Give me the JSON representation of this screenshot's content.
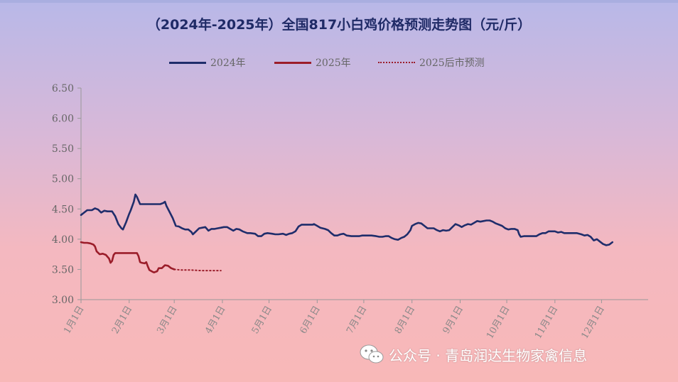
{
  "title": "（2024年-2025年）全国817小白鸡价格预测走势图（元/斤）",
  "watermark": "公众号 · 青岛润达生物家禽信息",
  "chart_data": {
    "type": "line",
    "title": "（2024年-2025年）全国817小白鸡价格预测走势图（元/斤）",
    "xlabel": "",
    "ylabel": "",
    "ylim": [
      3.0,
      6.5
    ],
    "xlim": [
      1,
      366
    ],
    "yticks": [
      "6.50",
      "6.00",
      "5.50",
      "5.00",
      "4.50",
      "4.00",
      "3.50",
      "3.00"
    ],
    "ytick_values": [
      6.5,
      6.0,
      5.5,
      5.0,
      4.5,
      4.0,
      3.5,
      3.0
    ],
    "x_categories": [
      "1月1日",
      "2月1日",
      "3月1日",
      "4月1日",
      "5月1日",
      "6月1日",
      "7月1日",
      "8月1日",
      "9月1日",
      "10月1日",
      "11月1日",
      "12月1日"
    ],
    "x_category_days": [
      1,
      32,
      61,
      92,
      122,
      153,
      183,
      214,
      245,
      275,
      306,
      336
    ],
    "legend_position": "top-center",
    "grid": false,
    "series": [
      {
        "name": "2024年",
        "color": "#1f2d6b",
        "style": "solid",
        "points": [
          [
            1,
            4.4
          ],
          [
            3,
            4.44
          ],
          [
            5,
            4.48
          ],
          [
            8,
            4.48
          ],
          [
            10,
            4.51
          ],
          [
            12,
            4.49
          ],
          [
            14,
            4.44
          ],
          [
            16,
            4.47
          ],
          [
            18,
            4.46
          ],
          [
            21,
            4.46
          ],
          [
            23,
            4.38
          ],
          [
            25,
            4.25
          ],
          [
            27,
            4.18
          ],
          [
            28,
            4.16
          ],
          [
            30,
            4.28
          ],
          [
            32,
            4.42
          ],
          [
            33,
            4.48
          ],
          [
            35,
            4.62
          ],
          [
            36,
            4.74
          ],
          [
            37,
            4.7
          ],
          [
            39,
            4.58
          ],
          [
            42,
            4.58
          ],
          [
            46,
            4.58
          ],
          [
            50,
            4.58
          ],
          [
            52,
            4.58
          ],
          [
            54,
            4.6
          ],
          [
            55,
            4.62
          ],
          [
            56,
            4.55
          ],
          [
            58,
            4.45
          ],
          [
            60,
            4.35
          ],
          [
            62,
            4.22
          ],
          [
            64,
            4.21
          ],
          [
            66,
            4.18
          ],
          [
            68,
            4.16
          ],
          [
            70,
            4.16
          ],
          [
            72,
            4.12
          ],
          [
            73,
            4.08
          ],
          [
            75,
            4.13
          ],
          [
            77,
            4.18
          ],
          [
            79,
            4.19
          ],
          [
            81,
            4.2
          ],
          [
            83,
            4.14
          ],
          [
            85,
            4.17
          ],
          [
            87,
            4.17
          ],
          [
            89,
            4.18
          ],
          [
            91,
            4.19
          ],
          [
            93,
            4.2
          ],
          [
            95,
            4.2
          ],
          [
            97,
            4.17
          ],
          [
            99,
            4.14
          ],
          [
            101,
            4.17
          ],
          [
            103,
            4.16
          ],
          [
            105,
            4.13
          ],
          [
            108,
            4.1
          ],
          [
            110,
            4.1
          ],
          [
            113,
            4.09
          ],
          [
            115,
            4.05
          ],
          [
            117,
            4.05
          ],
          [
            119,
            4.09
          ],
          [
            121,
            4.1
          ],
          [
            124,
            4.09
          ],
          [
            126,
            4.08
          ],
          [
            128,
            4.08
          ],
          [
            131,
            4.09
          ],
          [
            133,
            4.07
          ],
          [
            135,
            4.09
          ],
          [
            137,
            4.1
          ],
          [
            139,
            4.13
          ],
          [
            141,
            4.21
          ],
          [
            143,
            4.24
          ],
          [
            147,
            4.24
          ],
          [
            150,
            4.24
          ],
          [
            151,
            4.25
          ],
          [
            153,
            4.22
          ],
          [
            155,
            4.19
          ],
          [
            158,
            4.17
          ],
          [
            160,
            4.15
          ],
          [
            162,
            4.1
          ],
          [
            164,
            4.06
          ],
          [
            166,
            4.06
          ],
          [
            168,
            4.08
          ],
          [
            170,
            4.09
          ],
          [
            172,
            4.06
          ],
          [
            175,
            4.05
          ],
          [
            178,
            4.05
          ],
          [
            180,
            4.05
          ],
          [
            182,
            4.06
          ],
          [
            185,
            4.06
          ],
          [
            188,
            4.06
          ],
          [
            191,
            4.05
          ],
          [
            193,
            4.04
          ],
          [
            195,
            4.04
          ],
          [
            197,
            4.05
          ],
          [
            199,
            4.05
          ],
          [
            201,
            4.02
          ],
          [
            203,
            4.0
          ],
          [
            205,
            3.99
          ],
          [
            207,
            4.02
          ],
          [
            209,
            4.04
          ],
          [
            211,
            4.08
          ],
          [
            213,
            4.15
          ],
          [
            214,
            4.22
          ],
          [
            216,
            4.25
          ],
          [
            218,
            4.27
          ],
          [
            220,
            4.26
          ],
          [
            222,
            4.22
          ],
          [
            224,
            4.18
          ],
          [
            226,
            4.18
          ],
          [
            228,
            4.18
          ],
          [
            230,
            4.15
          ],
          [
            232,
            4.13
          ],
          [
            234,
            4.15
          ],
          [
            236,
            4.14
          ],
          [
            238,
            4.15
          ],
          [
            240,
            4.2
          ],
          [
            242,
            4.25
          ],
          [
            244,
            4.23
          ],
          [
            246,
            4.2
          ],
          [
            248,
            4.23
          ],
          [
            250,
            4.25
          ],
          [
            252,
            4.24
          ],
          [
            254,
            4.27
          ],
          [
            256,
            4.3
          ],
          [
            258,
            4.29
          ],
          [
            260,
            4.3
          ],
          [
            262,
            4.31
          ],
          [
            264,
            4.31
          ],
          [
            266,
            4.29
          ],
          [
            268,
            4.26
          ],
          [
            270,
            4.24
          ],
          [
            272,
            4.22
          ],
          [
            274,
            4.18
          ],
          [
            276,
            4.16
          ],
          [
            278,
            4.17
          ],
          [
            280,
            4.17
          ],
          [
            282,
            4.15
          ],
          [
            283,
            4.08
          ],
          [
            284,
            4.04
          ],
          [
            286,
            4.05
          ],
          [
            288,
            4.05
          ],
          [
            292,
            4.05
          ],
          [
            294,
            4.05
          ],
          [
            296,
            4.08
          ],
          [
            298,
            4.1
          ],
          [
            300,
            4.1
          ],
          [
            302,
            4.13
          ],
          [
            306,
            4.13
          ],
          [
            308,
            4.11
          ],
          [
            310,
            4.12
          ],
          [
            312,
            4.1
          ],
          [
            316,
            4.1
          ],
          [
            320,
            4.1
          ],
          [
            323,
            4.08
          ],
          [
            325,
            4.06
          ],
          [
            327,
            4.07
          ],
          [
            329,
            4.04
          ],
          [
            331,
            3.98
          ],
          [
            333,
            4.0
          ],
          [
            335,
            3.96
          ],
          [
            337,
            3.92
          ],
          [
            339,
            3.9
          ],
          [
            341,
            3.91
          ],
          [
            343,
            3.95
          ]
        ]
      },
      {
        "name": "2025年",
        "color": "#9b1d2a",
        "style": "solid",
        "points": [
          [
            1,
            3.95
          ],
          [
            3,
            3.94
          ],
          [
            5,
            3.94
          ],
          [
            7,
            3.93
          ],
          [
            9,
            3.91
          ],
          [
            10,
            3.88
          ],
          [
            11,
            3.8
          ],
          [
            13,
            3.75
          ],
          [
            15,
            3.76
          ],
          [
            17,
            3.74
          ],
          [
            19,
            3.68
          ],
          [
            20,
            3.61
          ],
          [
            21,
            3.64
          ],
          [
            22,
            3.74
          ],
          [
            23,
            3.77
          ],
          [
            25,
            3.77
          ],
          [
            28,
            3.77
          ],
          [
            31,
            3.77
          ],
          [
            33,
            3.77
          ],
          [
            35,
            3.77
          ],
          [
            37,
            3.77
          ],
          [
            38,
            3.72
          ],
          [
            39,
            3.62
          ],
          [
            40,
            3.61
          ],
          [
            42,
            3.6
          ],
          [
            43,
            3.62
          ],
          [
            44,
            3.55
          ],
          [
            45,
            3.49
          ],
          [
            47,
            3.46
          ],
          [
            48,
            3.45
          ],
          [
            50,
            3.47
          ],
          [
            51,
            3.52
          ],
          [
            53,
            3.52
          ],
          [
            55,
            3.57
          ],
          [
            57,
            3.56
          ],
          [
            59,
            3.52
          ],
          [
            61,
            3.5
          ]
        ]
      },
      {
        "name": "2025后市预测",
        "color": "#9b1d2a",
        "style": "dotted",
        "points": [
          [
            61,
            3.5
          ],
          [
            66,
            3.49
          ],
          [
            72,
            3.49
          ],
          [
            78,
            3.48
          ],
          [
            85,
            3.48
          ],
          [
            91,
            3.48
          ]
        ]
      }
    ]
  }
}
